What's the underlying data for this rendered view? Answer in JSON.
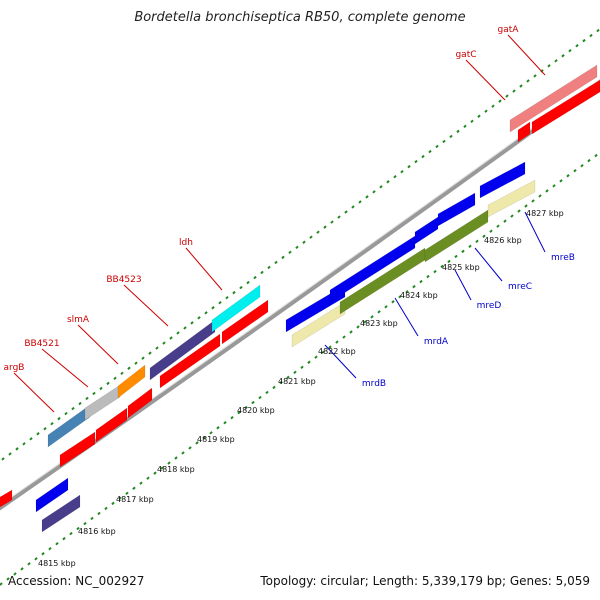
{
  "title": "Bordetella bronchiseptica RB50, complete genome",
  "footer": {
    "accession": "Accession: NC_002927",
    "summary": "Topology: circular; Length: 5,339,179 bp; Genes: 5,059"
  },
  "colors": {
    "forward_label": "#cc0000",
    "reverse_label": "#0000cc",
    "backbone": "#888888",
    "ticks": "#228822"
  },
  "scale_ticks": [
    {
      "label": "4815 kbp"
    },
    {
      "label": "4816 kbp"
    },
    {
      "label": "4817 kbp"
    },
    {
      "label": "4818 kbp"
    },
    {
      "label": "4819 kbp"
    },
    {
      "label": "4820 kbp"
    },
    {
      "label": "4821 kbp"
    },
    {
      "label": "4822 kbp"
    },
    {
      "label": "4823 kbp"
    },
    {
      "label": "4824 kbp"
    },
    {
      "label": "4825 kbp"
    },
    {
      "label": "4826 kbp"
    },
    {
      "label": "4827 kbp"
    }
  ],
  "forward_labels": [
    {
      "name": "argB"
    },
    {
      "name": "BB4521"
    },
    {
      "name": "slmA"
    },
    {
      "name": "BB4523"
    },
    {
      "name": "ldh"
    },
    {
      "name": "gatC"
    },
    {
      "name": "gatA"
    }
  ],
  "reverse_labels": [
    {
      "name": "mrdB"
    },
    {
      "name": "mrdA"
    },
    {
      "name": "mreD"
    },
    {
      "name": "mreC"
    },
    {
      "name": "mreB"
    }
  ],
  "feature_colors": {
    "red": "#ff0000",
    "blue": "#0000ee",
    "steelblue": "#4682b4",
    "silver": "#bbbbbb",
    "orange": "#ff8c00",
    "slate": "#483d8b",
    "cyan": "#00eeee",
    "salmon": "#f08080",
    "khaki": "#eee8aa",
    "olive": "#6b8e23",
    "darkslate": "#483d8b"
  }
}
